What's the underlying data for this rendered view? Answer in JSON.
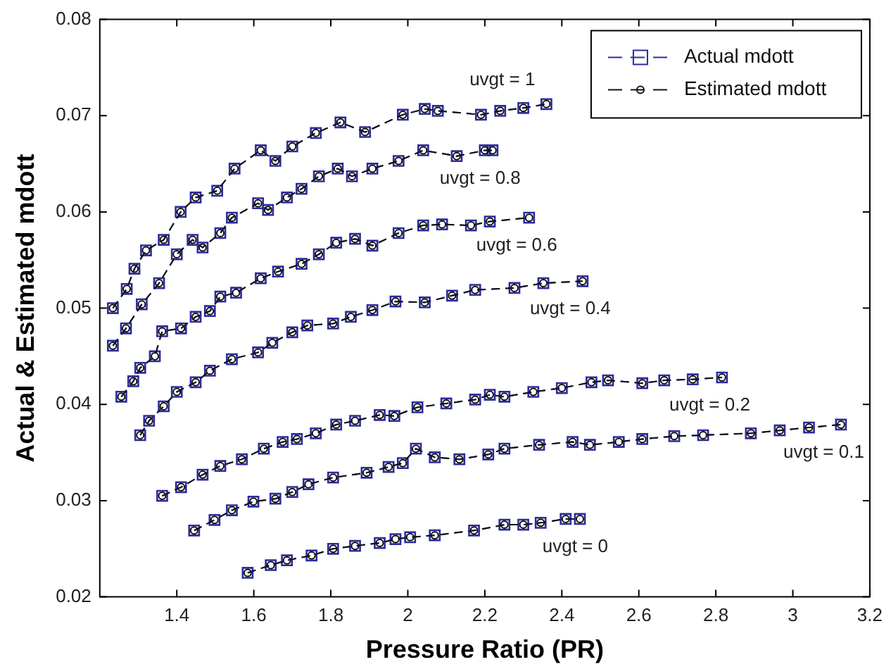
{
  "chart_data": {
    "type": "line",
    "xlabel": "Pressure Ratio (PR)",
    "ylabel": "Actual & Estimated mdott",
    "xlim": [
      1.2,
      3.2
    ],
    "xticks": [
      1.4,
      1.6,
      1.8,
      2,
      2.2,
      2.4,
      2.6,
      2.8,
      3,
      3.2
    ],
    "ylim": [
      0.02,
      0.08
    ],
    "yticks": [
      0.02,
      0.03,
      0.04,
      0.05,
      0.06,
      0.07,
      0.08
    ],
    "grid": false,
    "legend": "top right",
    "line_style": "dashed",
    "series": [
      {
        "name": "Actual mdott",
        "color": "#2b2b9e",
        "marker": "square",
        "x": [
          1.234,
          1.27,
          1.29,
          1.32,
          1.366,
          1.41,
          1.449,
          1.505,
          1.55,
          1.618,
          1.656,
          1.7,
          1.761,
          1.825,
          1.889,
          1.987,
          2.044,
          2.078,
          2.19,
          2.24,
          2.3,
          2.36,
          null,
          1.234,
          1.268,
          1.309,
          1.354,
          1.4,
          1.441,
          1.467,
          1.513,
          1.543,
          1.611,
          1.637,
          1.686,
          1.724,
          1.769,
          1.818,
          1.855,
          1.908,
          1.976,
          2.04,
          2.127,
          2.2,
          2.22,
          null,
          1.256,
          1.287,
          1.305,
          1.343,
          1.362,
          1.411,
          1.449,
          1.486,
          1.513,
          1.554,
          1.618,
          1.663,
          1.724,
          1.769,
          1.814,
          1.863,
          1.908,
          1.976,
          2.04,
          2.089,
          2.164,
          2.213,
          2.315,
          null,
          1.305,
          1.328,
          1.366,
          1.4,
          1.449,
          1.486,
          1.543,
          1.611,
          1.648,
          1.7,
          1.739,
          1.806,
          1.852,
          1.908,
          1.968,
          2.044,
          2.115,
          2.175,
          2.277,
          2.352,
          2.454,
          null,
          1.362,
          1.411,
          1.467,
          1.513,
          1.569,
          1.626,
          1.675,
          1.712,
          1.761,
          1.814,
          1.863,
          1.927,
          1.965,
          2.025,
          2.1,
          2.175,
          2.213,
          2.251,
          2.326,
          2.4,
          2.477,
          2.52,
          2.609,
          2.666,
          2.74,
          2.816,
          null,
          1.445,
          1.498,
          1.543,
          1.599,
          1.656,
          1.7,
          1.742,
          1.806,
          1.893,
          1.95,
          1.987,
          2.021,
          2.07,
          2.134,
          2.209,
          2.251,
          2.341,
          2.428,
          2.473,
          2.548,
          2.609,
          2.692,
          2.767,
          2.891,
          2.966,
          3.042,
          3.125,
          null,
          1.584,
          1.644,
          1.686,
          1.75,
          1.806,
          1.863,
          1.927,
          1.968,
          2.006,
          2.07,
          2.172,
          2.251,
          2.3,
          2.345,
          2.41,
          2.447
        ],
        "values": [
          0.05,
          0.052,
          0.0541,
          0.056,
          0.0571,
          0.06,
          0.0615,
          0.0622,
          0.0645,
          0.0664,
          0.0653,
          0.0668,
          0.0682,
          0.0693,
          0.0683,
          0.0701,
          0.0707,
          0.0705,
          0.0701,
          0.0705,
          0.0708,
          0.0712,
          null,
          0.0461,
          0.0479,
          0.0504,
          0.0526,
          0.0556,
          0.0571,
          0.0563,
          0.0578,
          0.0594,
          0.0609,
          0.0602,
          0.0615,
          0.0624,
          0.0637,
          0.0645,
          0.0637,
          0.0645,
          0.0653,
          0.0664,
          0.0658,
          0.0664,
          0.0664,
          null,
          0.0408,
          0.0424,
          0.0438,
          0.045,
          0.0476,
          0.0479,
          0.0491,
          0.0497,
          0.0512,
          0.0516,
          0.0531,
          0.0538,
          0.0546,
          0.0556,
          0.0568,
          0.0572,
          0.0565,
          0.0578,
          0.0586,
          0.0587,
          0.0586,
          0.059,
          0.0594,
          null,
          0.0368,
          0.0383,
          0.0398,
          0.0413,
          0.0423,
          0.0435,
          0.0447,
          0.0454,
          0.0464,
          0.0475,
          0.0482,
          0.0484,
          0.0491,
          0.0498,
          0.0507,
          0.0506,
          0.0513,
          0.0519,
          0.0521,
          0.0526,
          0.0528,
          null,
          0.0305,
          0.0314,
          0.0327,
          0.0336,
          0.0343,
          0.0354,
          0.0361,
          0.0364,
          0.037,
          0.0379,
          0.0383,
          0.0389,
          0.0388,
          0.0397,
          0.0401,
          0.0405,
          0.041,
          0.0408,
          0.0413,
          0.0417,
          0.0423,
          0.0425,
          0.0422,
          0.0425,
          0.0426,
          0.0428,
          null,
          0.0269,
          0.028,
          0.029,
          0.0299,
          0.0302,
          0.0309,
          0.0317,
          0.0324,
          0.0329,
          0.0335,
          0.0339,
          0.0354,
          0.0345,
          0.0343,
          0.0348,
          0.0354,
          0.0358,
          0.0361,
          0.0358,
          0.0361,
          0.0364,
          0.0367,
          0.0368,
          0.037,
          0.0373,
          0.0376,
          0.0379,
          null,
          0.0225,
          0.0233,
          0.0238,
          0.0243,
          0.025,
          0.0253,
          0.0256,
          0.026,
          0.0262,
          0.0264,
          0.0269,
          0.0275,
          0.0275,
          0.0277,
          0.0281,
          0.0281
        ]
      },
      {
        "name": "Estimated mdott",
        "color": "#111111",
        "marker": "circle",
        "x": [
          1.234,
          1.27,
          1.29,
          1.32,
          1.366,
          1.41,
          1.449,
          1.505,
          1.55,
          1.618,
          1.656,
          1.7,
          1.761,
          1.825,
          1.889,
          1.987,
          2.044,
          2.078,
          2.19,
          2.24,
          2.3,
          2.36,
          null,
          1.234,
          1.268,
          1.309,
          1.354,
          1.4,
          1.441,
          1.467,
          1.513,
          1.543,
          1.611,
          1.637,
          1.686,
          1.724,
          1.769,
          1.818,
          1.855,
          1.908,
          1.976,
          2.04,
          2.127,
          2.2,
          2.22,
          null,
          1.256,
          1.287,
          1.305,
          1.343,
          1.362,
          1.411,
          1.449,
          1.486,
          1.513,
          1.554,
          1.618,
          1.663,
          1.724,
          1.769,
          1.814,
          1.863,
          1.908,
          1.976,
          2.04,
          2.089,
          2.164,
          2.213,
          2.315,
          null,
          1.305,
          1.328,
          1.366,
          1.4,
          1.449,
          1.486,
          1.543,
          1.611,
          1.648,
          1.7,
          1.739,
          1.806,
          1.852,
          1.908,
          1.968,
          2.044,
          2.115,
          2.175,
          2.277,
          2.352,
          2.454,
          null,
          1.362,
          1.411,
          1.467,
          1.513,
          1.569,
          1.626,
          1.675,
          1.712,
          1.761,
          1.814,
          1.863,
          1.927,
          1.965,
          2.025,
          2.1,
          2.175,
          2.213,
          2.251,
          2.326,
          2.4,
          2.477,
          2.52,
          2.609,
          2.666,
          2.74,
          2.816,
          null,
          1.445,
          1.498,
          1.543,
          1.599,
          1.656,
          1.7,
          1.742,
          1.806,
          1.893,
          1.95,
          1.987,
          2.021,
          2.07,
          2.134,
          2.209,
          2.251,
          2.341,
          2.428,
          2.473,
          2.548,
          2.609,
          2.692,
          2.767,
          2.891,
          2.966,
          3.042,
          3.125,
          null,
          1.584,
          1.644,
          1.686,
          1.75,
          1.806,
          1.863,
          1.927,
          1.968,
          2.006,
          2.07,
          2.172,
          2.251,
          2.3,
          2.345,
          2.41,
          2.447
        ],
        "values": [
          0.05,
          0.052,
          0.0541,
          0.056,
          0.0571,
          0.06,
          0.0615,
          0.0622,
          0.0645,
          0.0664,
          0.0653,
          0.0668,
          0.0682,
          0.0693,
          0.0683,
          0.0701,
          0.0707,
          0.0705,
          0.0701,
          0.0705,
          0.0708,
          0.0712,
          null,
          0.0461,
          0.0479,
          0.0504,
          0.0526,
          0.0556,
          0.0571,
          0.0563,
          0.0578,
          0.0594,
          0.0609,
          0.0602,
          0.0615,
          0.0624,
          0.0637,
          0.0645,
          0.0637,
          0.0645,
          0.0653,
          0.0664,
          0.0658,
          0.0664,
          0.0664,
          null,
          0.0408,
          0.0424,
          0.0438,
          0.045,
          0.0476,
          0.0479,
          0.0491,
          0.0497,
          0.0512,
          0.0516,
          0.0531,
          0.0538,
          0.0546,
          0.0556,
          0.0568,
          0.0572,
          0.0565,
          0.0578,
          0.0586,
          0.0587,
          0.0586,
          0.059,
          0.0594,
          null,
          0.0368,
          0.0383,
          0.0398,
          0.0413,
          0.0423,
          0.0435,
          0.0447,
          0.0454,
          0.0464,
          0.0475,
          0.0482,
          0.0484,
          0.0491,
          0.0498,
          0.0507,
          0.0506,
          0.0513,
          0.0519,
          0.0521,
          0.0526,
          0.0528,
          null,
          0.0305,
          0.0314,
          0.0327,
          0.0336,
          0.0343,
          0.0354,
          0.0361,
          0.0364,
          0.037,
          0.0379,
          0.0383,
          0.0389,
          0.0388,
          0.0397,
          0.0401,
          0.0405,
          0.041,
          0.0408,
          0.0413,
          0.0417,
          0.0423,
          0.0425,
          0.0422,
          0.0425,
          0.0426,
          0.0428,
          null,
          0.0269,
          0.028,
          0.029,
          0.0299,
          0.0302,
          0.0309,
          0.0317,
          0.0324,
          0.0329,
          0.0335,
          0.0339,
          0.0354,
          0.0345,
          0.0343,
          0.0348,
          0.0354,
          0.0358,
          0.0361,
          0.0358,
          0.0361,
          0.0364,
          0.0367,
          0.0368,
          0.037,
          0.0373,
          0.0376,
          0.0379,
          null,
          0.0225,
          0.0233,
          0.0238,
          0.0243,
          0.025,
          0.0253,
          0.0256,
          0.026,
          0.0262,
          0.0264,
          0.0269,
          0.0275,
          0.0275,
          0.0277,
          0.0281,
          0.0281
        ]
      }
    ],
    "annotations": [
      "uvgt = 1",
      "uvgt = 0.8",
      "uvgt = 0.6",
      "uvgt = 0.4",
      "uvgt = 0.2",
      "uvgt = 0.1",
      "uvgt = 0"
    ]
  }
}
